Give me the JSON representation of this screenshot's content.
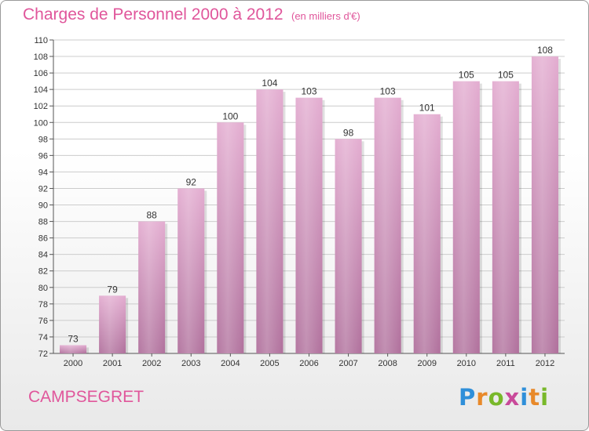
{
  "header": {
    "title": "Charges de Personnel 2000 à 2012",
    "subtitle": "(en milliers d'€)"
  },
  "footer": {
    "commune": "CAMPSEGRET",
    "logo_letters": [
      "P",
      "r",
      "o",
      "x",
      "i",
      "t",
      "i"
    ],
    "logo_colors": [
      "#2f8fd9",
      "#e8892a",
      "#78b82a",
      "#c94a9a",
      "#2f8fd9",
      "#e8892a",
      "#78b82a"
    ]
  },
  "colors": {
    "bar": "#d99cc4",
    "bar_dark": "#b26f9c",
    "accent": "#e0569b",
    "grid": "#cccccc"
  },
  "chart_data": {
    "type": "bar",
    "categories": [
      "2000",
      "2001",
      "2002",
      "2003",
      "2004",
      "2005",
      "2006",
      "2007",
      "2008",
      "2009",
      "2010",
      "2011",
      "2012"
    ],
    "values": [
      73,
      79,
      88,
      92,
      100,
      104,
      103,
      98,
      103,
      101,
      105,
      105,
      108
    ],
    "title": "Charges de Personnel 2000 à 2012",
    "subtitle": "(en milliers d'€)",
    "xlabel": "",
    "ylabel": "",
    "ylim": [
      72,
      110
    ],
    "ytick_step": 2,
    "grid": true
  }
}
